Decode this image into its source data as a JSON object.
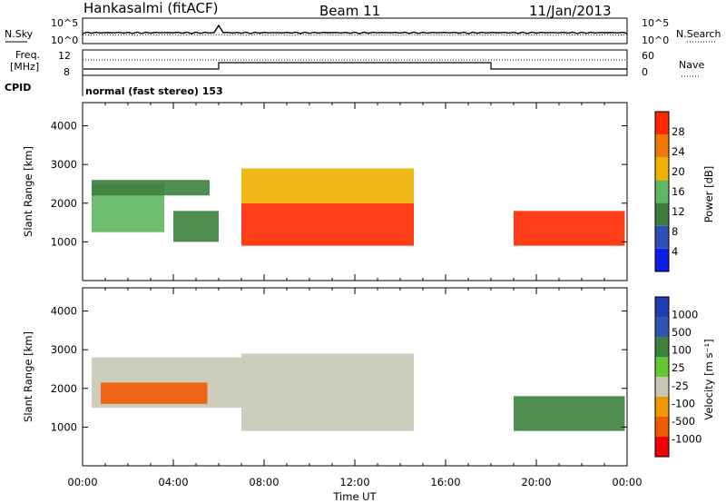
{
  "header": {
    "station": "Hankasalmi (fitACF)",
    "beam": "Beam 11",
    "date": "11/Jan/2013"
  },
  "status_panels": {
    "nsky_label": "N.Sky",
    "nsearch_label": "N.Search",
    "noise_ticks": [
      "10^5",
      "10^0"
    ],
    "freq_label_1": "Freq.",
    "freq_label_2": "[MHz]",
    "freq_ticks": [
      "12",
      "8"
    ],
    "nave_ticks": [
      "60",
      "0"
    ],
    "nave_label": "Nave",
    "cpid_label": "CPID",
    "cpid_text": "normal (fast stereo) 153"
  },
  "colors": {
    "power_scale": [
      "#0a1ee6",
      "#2c4fb8",
      "#3c7f3c",
      "#5fb75f",
      "#f0b000",
      "#f07800",
      "#ff2800"
    ],
    "velocity_scale": [
      "#f00000",
      "#f05a00",
      "#f09600",
      "#c8c8b4",
      "#64c832",
      "#3c823c",
      "#2e55b4",
      "#1e3cb4"
    ]
  },
  "chart_data": [
    {
      "type": "heatmap",
      "name": "power",
      "ylabel": "Slant Range [km]",
      "y_ticks": [
        1000,
        2000,
        3000,
        4000
      ],
      "ylim": [
        0,
        4600
      ],
      "xlim_hours": [
        0,
        24
      ],
      "colorbar_label": "Power [dB]",
      "colorbar_ticks": [
        "4",
        "8",
        "12",
        "16",
        "20",
        "24",
        "28"
      ],
      "regions": [
        {
          "t0": 0.4,
          "t1": 3.6,
          "r0": 1250,
          "r1": 2500,
          "level": 3
        },
        {
          "t0": 0.4,
          "t1": 5.6,
          "r0": 2200,
          "r1": 2600,
          "level": 2
        },
        {
          "t0": 4.0,
          "t1": 6.0,
          "r0": 1000,
          "r1": 1800,
          "level": 2
        },
        {
          "t0": 7.0,
          "t1": 14.6,
          "r0": 900,
          "r1": 2000,
          "level": 6
        },
        {
          "t0": 7.0,
          "t1": 14.6,
          "r0": 2000,
          "r1": 2900,
          "level": 4
        },
        {
          "t0": 19.0,
          "t1": 23.9,
          "r0": 900,
          "r1": 1800,
          "level": 6
        }
      ]
    },
    {
      "type": "heatmap",
      "name": "velocity",
      "ylabel": "Slant Range [km]",
      "y_ticks": [
        1000,
        2000,
        3000,
        4000
      ],
      "ylim": [
        0,
        4600
      ],
      "xlim_hours": [
        0,
        24
      ],
      "xlabel": "Time UT",
      "x_ticks": [
        "00:00",
        "04:00",
        "08:00",
        "12:00",
        "16:00",
        "20:00",
        "00:00"
      ],
      "colorbar_label": "Velocity [m s⁻¹]",
      "colorbar_ticks": [
        "-1000",
        "-500",
        "-100",
        "-25",
        "25",
        "100",
        "500",
        "1000"
      ],
      "regions": [
        {
          "t0": 0.4,
          "t1": 7.0,
          "r0": 1500,
          "r1": 2800,
          "level": 3
        },
        {
          "t0": 0.8,
          "t1": 5.5,
          "r0": 1600,
          "r1": 2150,
          "level": 1
        },
        {
          "t0": 7.0,
          "t1": 14.6,
          "r0": 900,
          "r1": 2900,
          "level": 3
        },
        {
          "t0": 19.0,
          "t1": 23.9,
          "r0": 900,
          "r1": 1800,
          "level": 5
        }
      ]
    }
  ]
}
